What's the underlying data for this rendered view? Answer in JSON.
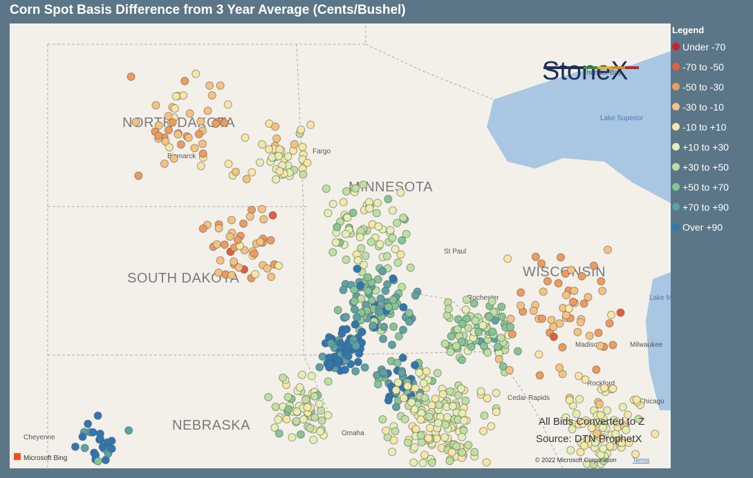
{
  "header": {
    "title": "Corn Spot Basis Difference from 3 Year Average (Cents/Bushel)"
  },
  "logo": "StoneX",
  "legend": {
    "title": "Legend",
    "items": [
      {
        "label": "Under -70",
        "color": "#d0202e"
      },
      {
        "label": "-70 to -50",
        "color": "#e2603f"
      },
      {
        "label": "-50 to -30",
        "color": "#ee9b5c"
      },
      {
        "label": "-30 to -10",
        "color": "#f6c27f"
      },
      {
        "label": "-10 to +10",
        "color": "#f7e7a2"
      },
      {
        "label": "+10 to +30",
        "color": "#e5efb2"
      },
      {
        "label": "+30 to +50",
        "color": "#bfe0a0"
      },
      {
        "label": "+50 to +70",
        "color": "#86c594"
      },
      {
        "label": "+70 to +90",
        "color": "#5ba3a5"
      },
      {
        "label": "Over +90",
        "color": "#2f76b4"
      }
    ]
  },
  "map": {
    "states": [
      "NORTH DAKOTA",
      "MINNESOTA",
      "SOUTH DAKOTA",
      "WISCONSIN",
      "NEBRASKA"
    ],
    "places": [
      "Thunder Bay",
      "Lake Superior",
      "Bismarck",
      "Fargo",
      "St Paul",
      "Rochester",
      "Madison",
      "Milwaukee",
      "Lake Michigan",
      "Rockford",
      "Chicago",
      "Cedar Rapids",
      "Omaha",
      "Cheyenne"
    ],
    "notes": [
      "All Bids Converted to Z",
      "Source: DTN ProphetX"
    ],
    "attribution": "Microsoft Bing",
    "copyright": "© 2022 Microsoft Corporation",
    "terms": "Terms"
  }
}
